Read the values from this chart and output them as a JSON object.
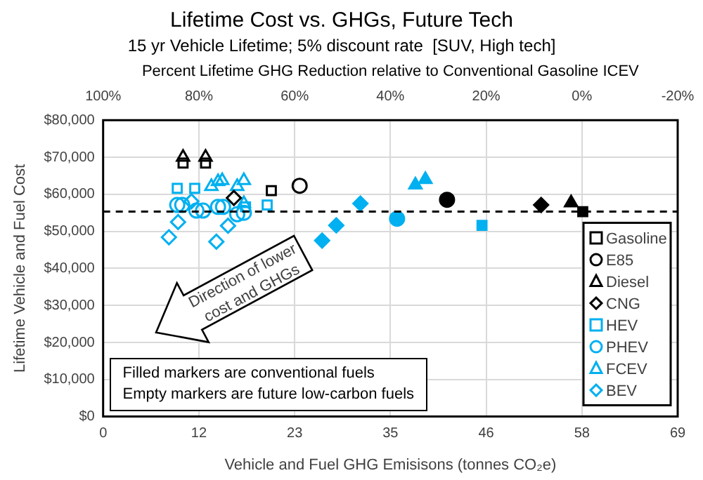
{
  "chart_data": {
    "type": "scatter",
    "title": "Lifetime Cost vs. GHGs, Future Tech",
    "subtitle": "15 yr Vehicle Lifetime; 5% discount rate  [SUV, High tech]",
    "xlabel": "Vehicle and Fuel GHG Emisisons (tonnes CO₂e)",
    "x2label": "Percent Lifetime GHG Reduction relative to Conventional Gasoline ICEV",
    "ylabel": "Lifetime Vehicle and Fuel Cost",
    "xlim": [
      0,
      69
    ],
    "xticks": [
      0,
      {
        "value": 11.5,
        "label": "12"
      },
      23,
      {
        "value": 34.5,
        "label": "35"
      },
      46,
      {
        "value": 57.5,
        "label": "58"
      },
      69
    ],
    "x2lim": [
      100,
      -20
    ],
    "x2ticks": [
      {
        "value": 100,
        "label": "100%"
      },
      {
        "value": 80,
        "label": "80%"
      },
      {
        "value": 60,
        "label": "60%"
      },
      {
        "value": 40,
        "label": "40%"
      },
      {
        "value": 20,
        "label": "20%"
      },
      {
        "value": 0,
        "label": "0%"
      },
      {
        "value": -20,
        "label": "-20%"
      }
    ],
    "ylim": [
      0,
      80000
    ],
    "yticks": [
      {
        "value": 0,
        "label": "$0"
      },
      {
        "value": 10000,
        "label": "$10,000"
      },
      {
        "value": 20000,
        "label": "$20,000"
      },
      {
        "value": 30000,
        "label": "$30,000"
      },
      {
        "value": 40000,
        "label": "$40,000"
      },
      {
        "value": 50000,
        "label": "$50,000"
      },
      {
        "value": 60000,
        "label": "$60,000"
      },
      {
        "value": 70000,
        "label": "$70,000"
      },
      {
        "value": 80000,
        "label": "$80,000"
      }
    ],
    "grid": true,
    "legend": "bottom right",
    "ref_lines": [
      {
        "axis": "y",
        "value": 55300,
        "color": "#000000",
        "line_style": "dashed"
      }
    ],
    "annotations": [
      "Direction of lower cost and GHGs",
      "Filled markers are conventional fuels",
      "Empty markers are future low-carbon fuels"
    ],
    "series": [
      {
        "name": "Gasoline",
        "color": "#000000",
        "marker": "square",
        "x": [
          9.6,
          12.3,
          20.2
        ],
        "values": [
          68400,
          68400,
          61000
        ]
      },
      {
        "name": "E85",
        "color": "#000000",
        "marker": "circle",
        "x": [
          23.6
        ],
        "values": [
          62300
        ]
      },
      {
        "name": "Diesel",
        "color": "#000000",
        "marker": "triangle",
        "x": [
          9.6,
          12.3
        ],
        "values": [
          70000,
          70000
        ]
      },
      {
        "name": "CNG",
        "color": "#000000",
        "marker": "diamond",
        "x": [
          15.7
        ],
        "values": [
          59000
        ]
      },
      {
        "name": "HEV",
        "color": "#00b0f0",
        "marker": "square",
        "x": [
          8.9,
          11.0,
          17.1,
          19.7
        ],
        "values": [
          61600,
          61600,
          56600,
          57100
        ]
      },
      {
        "name": "PHEV",
        "color": "#00b0f0",
        "marker": "circle",
        "x": [
          8.9,
          9.5,
          11.2,
          12.0,
          13.8,
          14.4,
          16.1,
          16.9
        ],
        "values": [
          57100,
          57100,
          55600,
          55600,
          56600,
          56600,
          54600,
          55000
        ]
      },
      {
        "name": "FCEV",
        "color": "#00b0f0",
        "marker": "triangle",
        "x": [
          13.0,
          13.8,
          14.3,
          16.1,
          16.9,
          16.9
        ],
        "values": [
          62100,
          63400,
          63700,
          62100,
          63700,
          57500
        ]
      },
      {
        "name": "BEV",
        "color": "#00b0f0",
        "marker": "diamond",
        "x": [
          7.9,
          9.0,
          10.6,
          13.6,
          15.0
        ],
        "values": [
          48400,
          52500,
          58100,
          47200,
          51500
        ]
      },
      {
        "color": "#000000",
        "marker": "square",
        "x": [
          57.6
        ],
        "values": [
          55300
        ]
      },
      {
        "color": "#000000",
        "marker": "circle",
        "x": [
          41.3
        ],
        "values": [
          58500
        ]
      },
      {
        "color": "#000000",
        "marker": "triangle",
        "x": [
          56.2
        ],
        "values": [
          57700
        ]
      },
      {
        "color": "#000000",
        "marker": "diamond",
        "x": [
          52.6
        ],
        "values": [
          57100
        ]
      },
      {
        "color": "#00b0f0",
        "marker": "square",
        "x": [
          45.5
        ],
        "values": [
          51600
        ]
      },
      {
        "color": "#00b0f0",
        "marker": "circle",
        "x": [
          35.3
        ],
        "values": [
          53400
        ]
      },
      {
        "color": "#00b0f0",
        "marker": "triangle",
        "x": [
          37.5,
          38.7
        ],
        "values": [
          62500,
          64000
        ]
      },
      {
        "color": "#00b0f0",
        "marker": "diamond",
        "x": [
          26.3,
          28.0,
          30.9
        ],
        "values": [
          47500,
          51600,
          57500
        ]
      }
    ]
  }
}
